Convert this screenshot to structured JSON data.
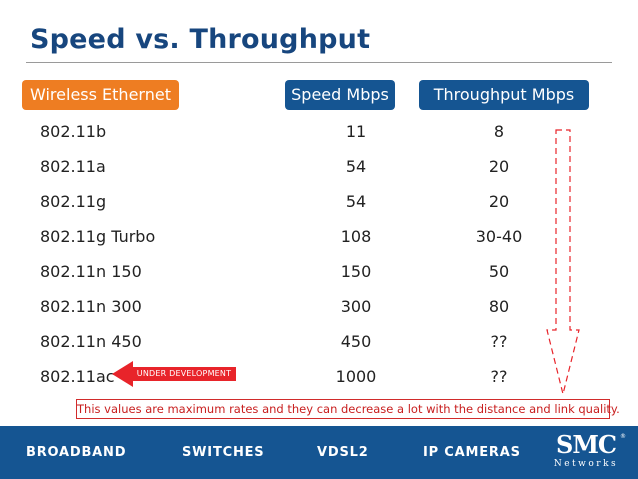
{
  "title": "Speed vs. Throughput",
  "headers": {
    "wireless": "Wireless Ethernet",
    "speed": "Speed Mbps",
    "throughput": "Throughput Mbps"
  },
  "rows": [
    {
      "standard": "802.11b",
      "speed": "11",
      "throughput": "8"
    },
    {
      "standard": "802.11a",
      "speed": "54",
      "throughput": "20"
    },
    {
      "standard": "802.11g",
      "speed": "54",
      "throughput": "20"
    },
    {
      "standard": "802.11g Turbo",
      "speed": "108",
      "throughput": "30-40"
    },
    {
      "standard": "802.11n 150",
      "speed": "150",
      "throughput": "50"
    },
    {
      "standard": "802.11n 300",
      "speed": "300",
      "throughput": "80"
    },
    {
      "standard": "802.11n 450",
      "speed": "450",
      "throughput": "??"
    },
    {
      "standard": "802.11ac",
      "speed": "1000",
      "throughput": "??"
    }
  ],
  "under_development": "UNDER DEVELOPMENT",
  "note": "This values are maximum rates and they can decrease a lot with the distance and link quality.",
  "footer": {
    "items": [
      "BROADBAND",
      "SWITCHES",
      "VDSL2",
      "IP CAMERAS"
    ],
    "logo_main": "SMC",
    "logo_sub": "Networks",
    "logo_reg": "®"
  },
  "colors": {
    "title": "#17467e",
    "header_orange": "#ee7d22",
    "header_blue": "#155592",
    "footer_blue": "#155592",
    "accent_red": "#e8242a"
  },
  "icons": [
    "left-arrow-icon",
    "down-arrow-icon"
  ]
}
